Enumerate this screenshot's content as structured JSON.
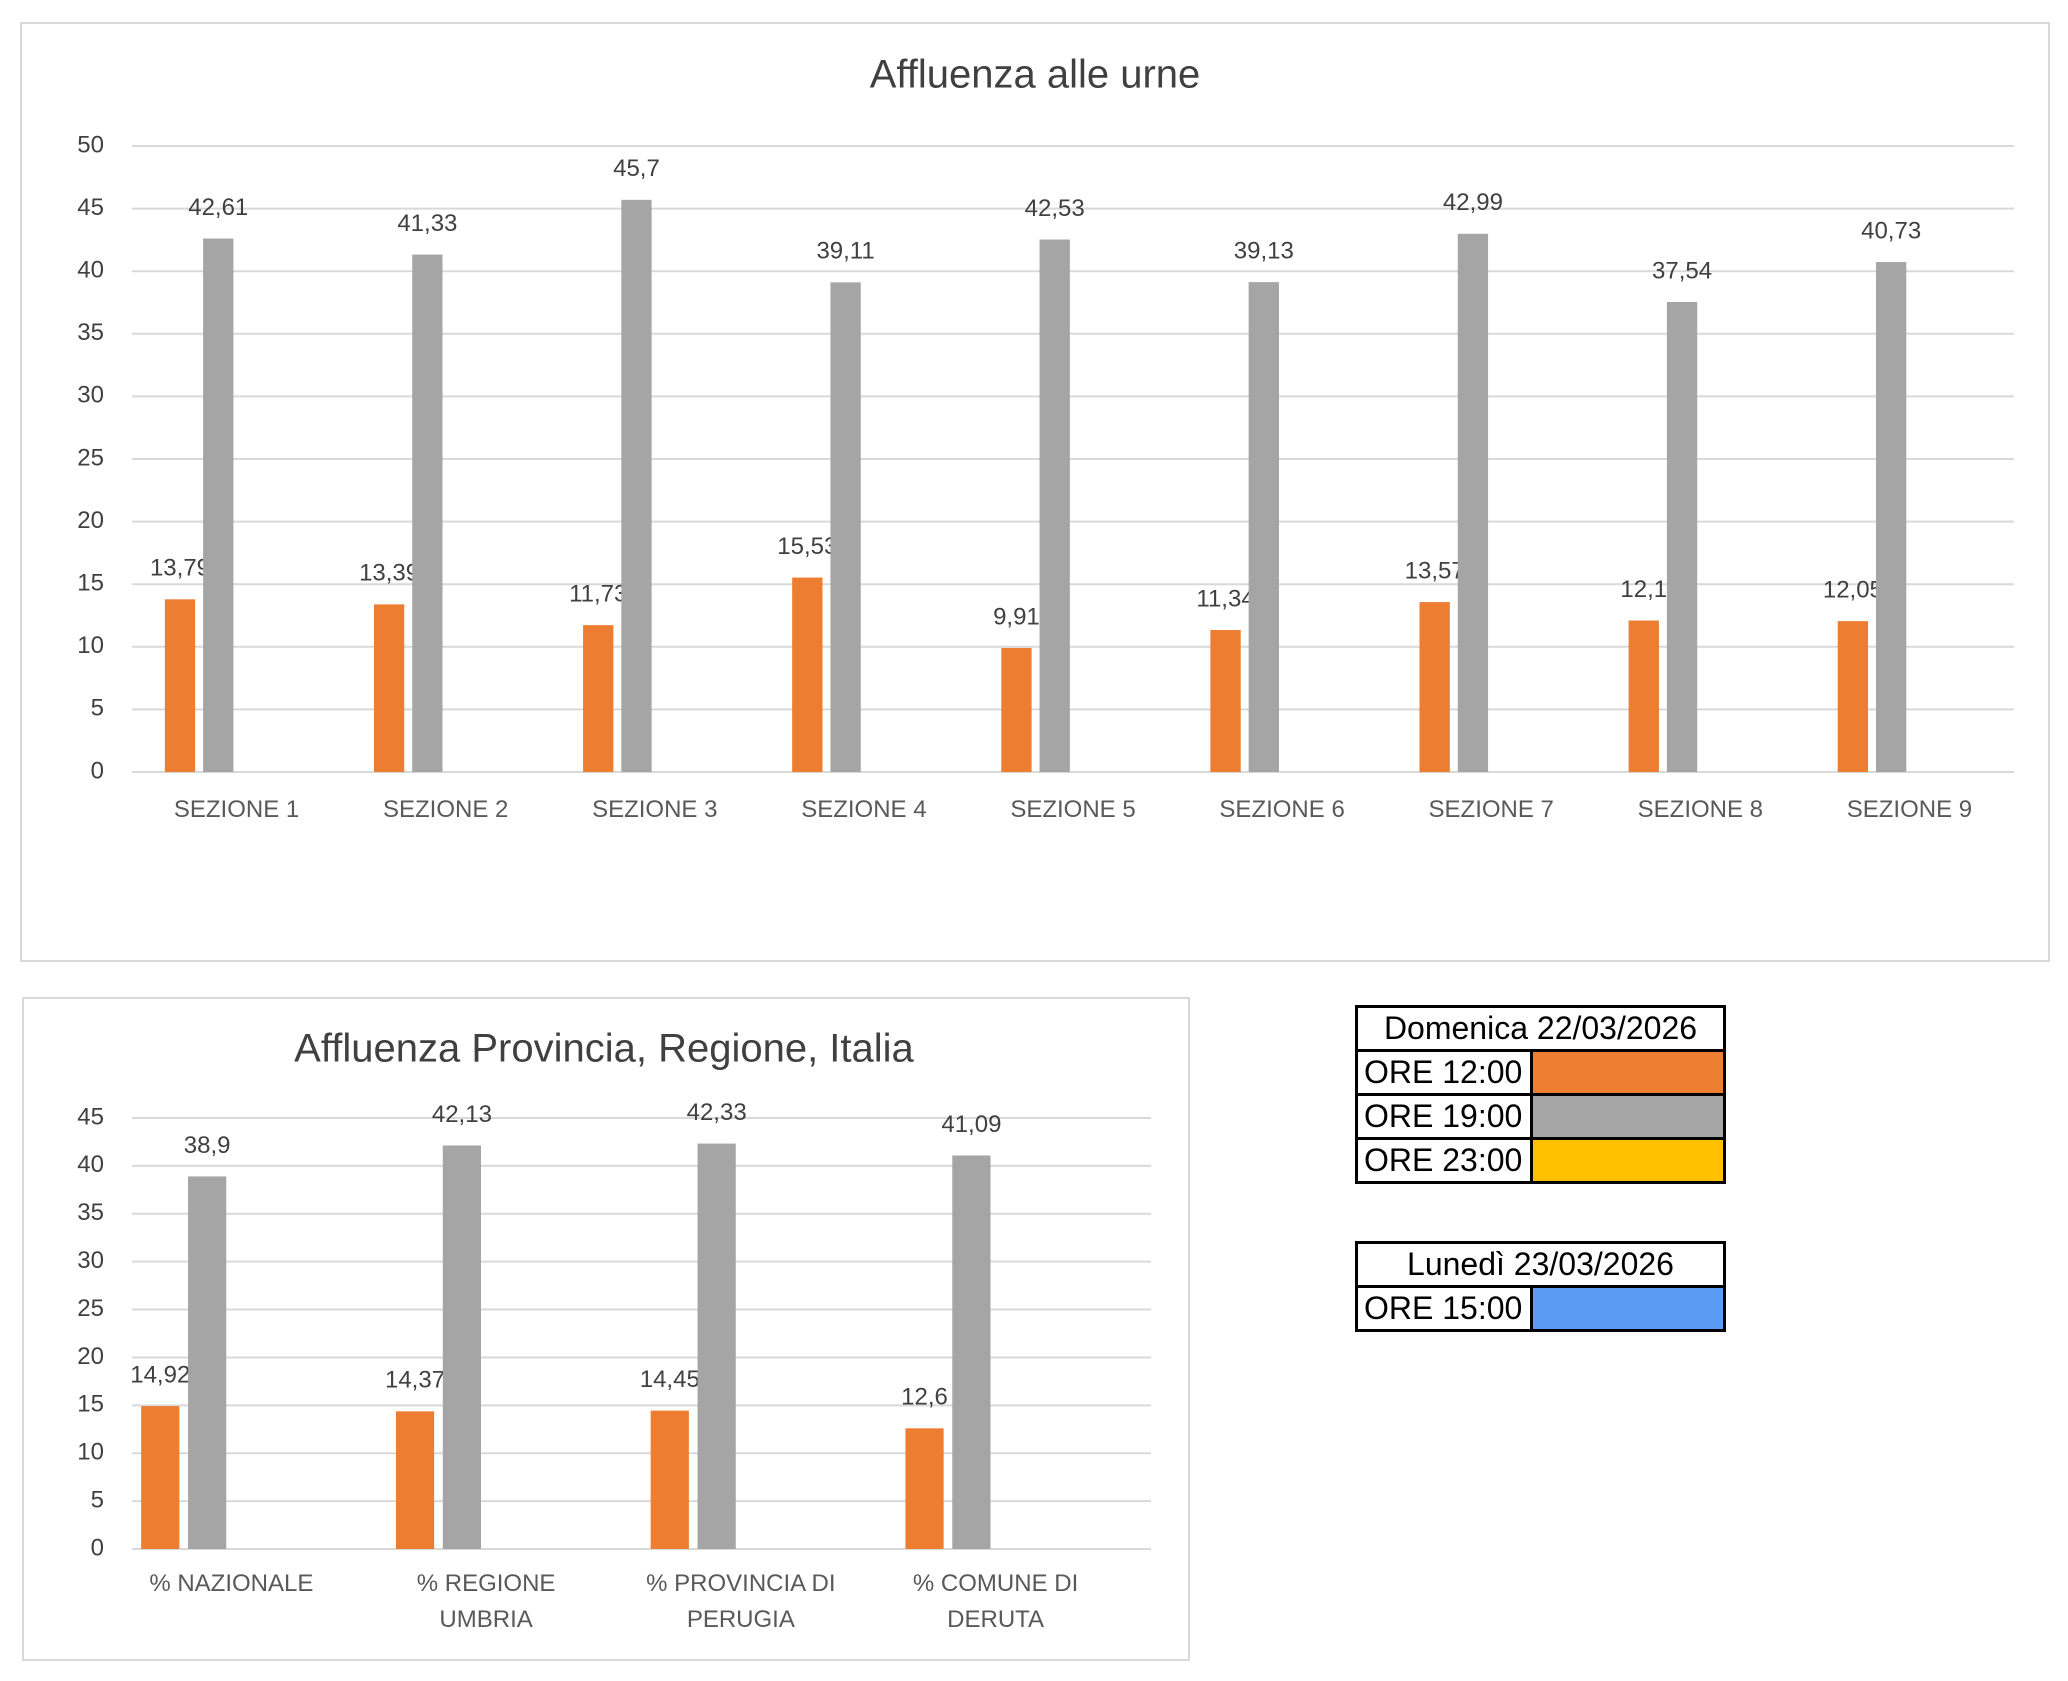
{
  "chart_data": [
    {
      "type": "bar",
      "title": "Affluenza alle urne",
      "categories": [
        "SEZIONE 1",
        "SEZIONE 2",
        "SEZIONE 3",
        "SEZIONE 4",
        "SEZIONE 5",
        "SEZIONE 6",
        "SEZIONE 7",
        "SEZIONE 8",
        "SEZIONE 9"
      ],
      "series": [
        {
          "color": "#ed7d31",
          "values": [
            13.79,
            13.39,
            11.73,
            15.53,
            9.91,
            11.34,
            13.57,
            12.1,
            12.05
          ],
          "value_labels": [
            "13,79",
            "13,39",
            "11,73",
            "15,53",
            "9,91",
            "11,34",
            "13,57",
            "12,1",
            "12,05"
          ]
        },
        {
          "color": "#a5a5a5",
          "values": [
            42.61,
            41.33,
            45.7,
            39.11,
            42.53,
            39.13,
            42.99,
            37.54,
            40.73
          ],
          "value_labels": [
            "42,61",
            "41,33",
            "45,7",
            "39,11",
            "42,53",
            "39,13",
            "42,99",
            "37,54",
            "40,73"
          ]
        }
      ],
      "ylim": [
        0,
        50
      ],
      "yticks": [
        0,
        5,
        10,
        15,
        20,
        25,
        30,
        35,
        40,
        45,
        50
      ],
      "grid": true
    },
    {
      "type": "bar",
      "title": "Affluenza Provincia, Regione, Italia",
      "categories": [
        "% NAZIONALE",
        "% REGIONE UMBRIA",
        "% PROVINCIA DI PERUGIA",
        "% COMUNE DI DERUTA"
      ],
      "series": [
        {
          "color": "#ed7d31",
          "values": [
            14.92,
            14.37,
            14.45,
            12.6
          ],
          "value_labels": [
            "14,92",
            "14,37",
            "14,45",
            "12,6"
          ]
        },
        {
          "color": "#a5a5a5",
          "values": [
            38.9,
            42.13,
            42.33,
            41.09
          ],
          "value_labels": [
            "38,9",
            "42,13",
            "42,33",
            "41,09"
          ]
        }
      ],
      "ylim": [
        0,
        45
      ],
      "yticks": [
        0,
        5,
        10,
        15,
        20,
        25,
        30,
        35,
        40,
        45
      ],
      "grid": true
    }
  ],
  "legend_tables": [
    {
      "header": "Domenica 22/03/2026",
      "rows": [
        {
          "label": "ORE 12:00",
          "color": "#ed7d31"
        },
        {
          "label": "ORE 19:00",
          "color": "#a5a5a5"
        },
        {
          "label": "ORE 23:00",
          "color": "#ffc000"
        }
      ]
    },
    {
      "header": "Lunedì 23/03/2026",
      "rows": [
        {
          "label": "ORE 15:00",
          "color": "#5b9bf5"
        }
      ]
    }
  ]
}
